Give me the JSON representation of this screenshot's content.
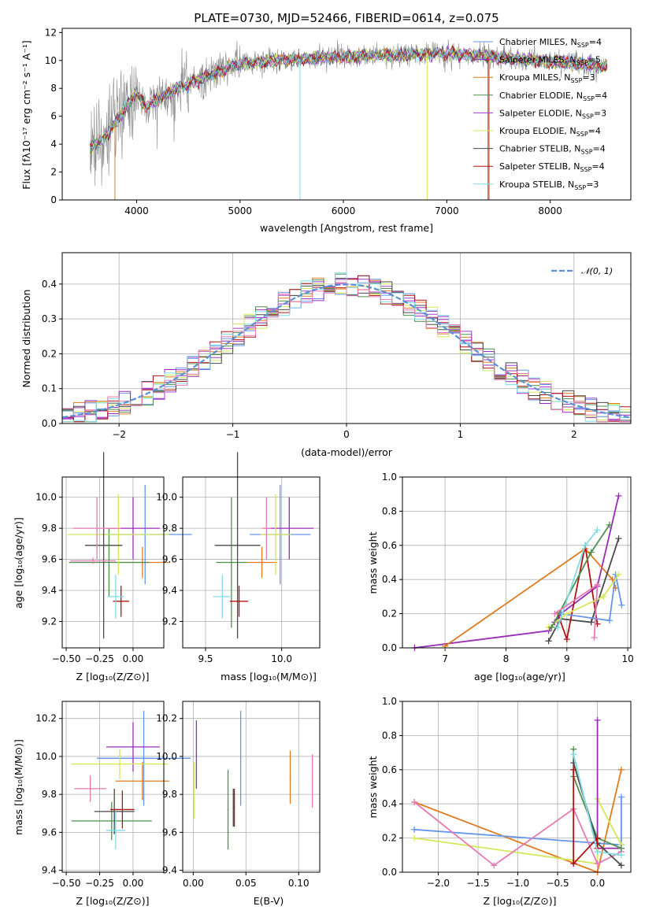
{
  "colors": {
    "chabrier_miles": "#6495ed",
    "salpeter_miles": "#9a2bb8",
    "kroupa_miles": "#e07b20",
    "chabrier_elodie": "#4e8f4e",
    "salpeter_elodie": "#a43ad1",
    "kroupa_elodie": "#d4e85a",
    "chabrier_stelib": "#4a4a4a",
    "salpeter_stelib": "#b01414",
    "kroupa_stelib": "#7fdce8",
    "pink": "#e57ab3",
    "gauss": "#5b8fd6"
  },
  "chart_data": [
    {
      "id": "spectrum",
      "type": "line",
      "title": "PLATE=0730, MJD=52466, FIBERID=0614, z=0.075",
      "xlabel": "wavelength [Angstrom, rest frame]",
      "ylabel": "Flux [fλ10⁻¹⁷ erg cm⁻² s⁻¹ A⁻¹]",
      "xlim": [
        3280,
        8780
      ],
      "ylim": [
        0,
        12.3
      ],
      "xticks": [
        "4000",
        "5000",
        "6000",
        "7000",
        "8000"
      ],
      "yticks": [
        "0",
        "2",
        "4",
        "6",
        "8",
        "10",
        "12"
      ],
      "x_range": [
        3550,
        8550
      ],
      "legend": [
        {
          "label": "Chabrier MILES, N",
          "sub": "SSP",
          "tail": "=4",
          "color": "chabrier_miles"
        },
        {
          "label": "Salpeter MILES, N",
          "sub": "SSP",
          "tail": "=5",
          "color": "salpeter_miles"
        },
        {
          "label": "Kroupa MILES, N",
          "sub": "SSP",
          "tail": "=3",
          "color": "kroupa_miles"
        },
        {
          "label": "Chabrier ELODIE, N",
          "sub": "SSP",
          "tail": "=4",
          "color": "chabrier_elodie"
        },
        {
          "label": "Salpeter ELODIE, N",
          "sub": "SSP",
          "tail": "=3",
          "color": "salpeter_elodie"
        },
        {
          "label": "Kroupa ELODIE, N",
          "sub": "SSP",
          "tail": "=4",
          "color": "kroupa_elodie"
        },
        {
          "label": "Chabrier STELIB, N",
          "sub": "SSP",
          "tail": "=4",
          "color": "chabrier_stelib"
        },
        {
          "label": "Salpeter STELIB, N",
          "sub": "SSP",
          "tail": "=4",
          "color": "salpeter_stelib"
        },
        {
          "label": "Kroupa STELIB, N",
          "sub": "SSP",
          "tail": "=3",
          "color": "kroupa_stelib"
        }
      ]
    },
    {
      "id": "residuals",
      "type": "bar",
      "xlabel": "(data-model)/error",
      "ylabel": "Normed distribution",
      "xlim": [
        -2.5,
        2.5
      ],
      "ylim": [
        0,
        0.49
      ],
      "xticks": [
        "−2",
        "−1",
        "0",
        "1",
        "2"
      ],
      "yticks": [
        "0.0",
        "0.1",
        "0.2",
        "0.3",
        "0.4"
      ],
      "legend": "𝒩(0, 1)",
      "bin_width": 0.1
    },
    {
      "id": "age_vs_Z",
      "type": "scatter",
      "xlabel": "Z [log₁₀(Z/Z⊙)]",
      "ylabel": "age  [log₁₀(age/yr)]",
      "xlim": [
        -0.53,
        0.23
      ],
      "ylim": [
        9.03,
        10.13
      ],
      "xticks": [
        "−0.50",
        "−0.25",
        "0.00"
      ],
      "yticks": [
        "9.2",
        "9.4",
        "9.6",
        "9.8",
        "10.0"
      ],
      "points": [
        {
          "x": 0.09,
          "y": 9.76,
          "xe": 0.35,
          "ye": 0.32,
          "c": "chabrier_miles"
        },
        {
          "x": 0.0,
          "y": 9.8,
          "xe": 0.2,
          "ye": 0.2,
          "c": "salpeter_miles"
        },
        {
          "x": 0.07,
          "y": 9.58,
          "xe": 0.2,
          "ye": 0.1,
          "c": "kroupa_miles"
        },
        {
          "x": -0.18,
          "y": 9.58,
          "xe": 0.3,
          "ye": 0.22,
          "c": "chabrier_elodie"
        },
        {
          "x": -0.11,
          "y": 9.76,
          "xe": 0.38,
          "ye": 0.26,
          "c": "kroupa_elodie"
        },
        {
          "x": -0.22,
          "y": 9.69,
          "xe": 0.14,
          "ye": 0.6,
          "c": "chabrier_stelib"
        },
        {
          "x": -0.09,
          "y": 9.33,
          "xe": 0.06,
          "ye": 0.1,
          "c": "salpeter_stelib"
        },
        {
          "x": -0.13,
          "y": 9.36,
          "xe": 0.06,
          "ye": 0.14,
          "c": "kroupa_stelib"
        },
        {
          "x": -0.27,
          "y": 9.8,
          "xe": 0.18,
          "ye": 0.2,
          "c": "pink"
        },
        {
          "x": -0.3,
          "y": 9.59,
          "xe": 0.17,
          "ye": 0.02,
          "c": "pink"
        }
      ]
    },
    {
      "id": "age_vs_mass",
      "type": "scatter",
      "xlabel": "mass [log₁₀(M/M⊙)]",
      "ylabel": "",
      "xlim": [
        9.35,
        10.25
      ],
      "ylim": [
        9.03,
        10.13
      ],
      "xticks": [
        "9.5",
        "10.0"
      ],
      "yticks": [
        "9.2",
        "9.4",
        "9.6",
        "9.8",
        "10.0"
      ],
      "points": [
        {
          "x": 9.99,
          "y": 9.76,
          "xe": 0.2,
          "ye": 0.32,
          "c": "chabrier_miles"
        },
        {
          "x": 10.05,
          "y": 9.8,
          "xe": 0.16,
          "ye": 0.2,
          "c": "salpeter_miles"
        },
        {
          "x": 9.87,
          "y": 9.58,
          "xe": 0.1,
          "ye": 0.1,
          "c": "kroupa_miles"
        },
        {
          "x": 9.67,
          "y": 9.58,
          "xe": 0.1,
          "ye": 0.42,
          "c": "chabrier_elodie"
        },
        {
          "x": 9.96,
          "y": 9.76,
          "xe": 0.1,
          "ye": 0.26,
          "c": "kroupa_elodie"
        },
        {
          "x": 9.71,
          "y": 9.69,
          "xe": 0.15,
          "ye": 0.6,
          "c": "chabrier_stelib"
        },
        {
          "x": 9.72,
          "y": 9.33,
          "xe": 0.06,
          "ye": 0.1,
          "c": "salpeter_stelib"
        },
        {
          "x": 9.61,
          "y": 9.36,
          "xe": 0.06,
          "ye": 0.14,
          "c": "kroupa_stelib"
        },
        {
          "x": 9.9,
          "y": 9.8,
          "xe": 0.03,
          "ye": 0.2,
          "c": "pink"
        }
      ]
    },
    {
      "id": "weight_vs_age",
      "type": "line",
      "xlabel": "age  [log₁₀(age/yr)]",
      "ylabel": "mass weight",
      "xlim": [
        6.3,
        10.05
      ],
      "ylim": [
        0,
        1.0
      ],
      "xticks": [
        "7",
        "8",
        "9",
        "10"
      ],
      "yticks": [
        "0.0",
        "0.2",
        "0.4",
        "0.6",
        "0.8",
        "1.0"
      ],
      "series": [
        {
          "c": "salpeter_miles",
          "x": [
            6.5,
            8.7,
            8.8,
            8.9,
            9.5,
            9.85
          ],
          "y": [
            0.0,
            0.1,
            0.15,
            0.2,
            0.36,
            0.89
          ]
        },
        {
          "c": "kroupa_miles",
          "x": [
            7.0,
            9.3,
            9.75,
            9.8
          ],
          "y": [
            0.01,
            0.58,
            0.4,
            0.35
          ]
        },
        {
          "c": "chabrier_stelib",
          "x": [
            8.7,
            8.9,
            9.4,
            9.85
          ],
          "y": [
            0.04,
            0.17,
            0.15,
            0.64
          ]
        },
        {
          "c": "salpeter_stelib",
          "x": [
            8.85,
            9.0,
            9.3,
            9.5
          ],
          "y": [
            0.2,
            0.05,
            0.6,
            0.14
          ]
        },
        {
          "c": "chabrier_miles",
          "x": [
            8.9,
            9.7,
            9.8,
            9.9
          ],
          "y": [
            0.2,
            0.16,
            0.43,
            0.25
          ]
        },
        {
          "c": "kroupa_elodie",
          "x": [
            8.7,
            9.0,
            9.6,
            9.85
          ],
          "y": [
            0.12,
            0.2,
            0.3,
            0.43
          ]
        },
        {
          "c": "chabrier_elodie",
          "x": [
            8.75,
            9.4,
            9.7
          ],
          "y": [
            0.12,
            0.56,
            0.72
          ]
        },
        {
          "c": "kroupa_stelib",
          "x": [
            8.85,
            9.3,
            9.5
          ],
          "y": [
            0.12,
            0.6,
            0.69
          ]
        },
        {
          "c": "pink",
          "x": [
            8.8,
            9.5,
            9.45
          ],
          "y": [
            0.2,
            0.37,
            0.06
          ]
        }
      ]
    },
    {
      "id": "mass_vs_Z",
      "type": "scatter",
      "xlabel": "Z [log₁₀(Z/Z⊙)]",
      "ylabel": "mass [log₁₀(M/M⊙)]",
      "xlim": [
        -0.53,
        0.23
      ],
      "ylim": [
        9.39,
        10.29
      ],
      "xticks": [
        "−0.50",
        "−0.25",
        "0.00"
      ],
      "yticks": [
        "9.4",
        "9.6",
        "9.8",
        "10.0",
        "10.2"
      ],
      "points": [
        {
          "x": 0.08,
          "y": 9.99,
          "xe": 0.35,
          "ye": 0.25,
          "c": "chabrier_miles"
        },
        {
          "x": 0.0,
          "y": 10.05,
          "xe": 0.2,
          "ye": 0.13,
          "c": "salpeter_miles"
        },
        {
          "x": 0.07,
          "y": 9.87,
          "xe": 0.2,
          "ye": 0.1,
          "c": "kroupa_miles"
        },
        {
          "x": -0.16,
          "y": 9.66,
          "xe": 0.3,
          "ye": 0.1,
          "c": "chabrier_elodie"
        },
        {
          "x": -0.1,
          "y": 9.96,
          "xe": 0.36,
          "ye": 0.08,
          "c": "kroupa_elodie"
        },
        {
          "x": -0.14,
          "y": 9.71,
          "xe": 0.15,
          "ye": 0.12,
          "c": "chabrier_stelib"
        },
        {
          "x": -0.08,
          "y": 9.72,
          "xe": 0.09,
          "ye": 0.1,
          "c": "salpeter_stelib"
        },
        {
          "x": -0.13,
          "y": 9.61,
          "xe": 0.07,
          "ye": 0.1,
          "c": "kroupa_stelib"
        },
        {
          "x": -0.32,
          "y": 9.83,
          "xe": 0.12,
          "ye": 0.07,
          "c": "pink"
        }
      ]
    },
    {
      "id": "mass_vs_ebv",
      "type": "scatter",
      "xlabel": "E(B-V)",
      "ylabel": "",
      "xlim": [
        -0.01,
        0.12
      ],
      "ylim": [
        9.39,
        10.29
      ],
      "xticks": [
        "0.00",
        "0.05",
        "0.10"
      ],
      "yticks": [
        "9.4",
        "9.6",
        "9.8",
        "10.0",
        "10.2"
      ],
      "points": [
        {
          "x": 0.045,
          "y": 9.99,
          "xe": 0,
          "ye": 0.25,
          "c": "chabrier_miles"
        },
        {
          "x": 0.003,
          "y": 10.01,
          "xe": 0,
          "ye": 0.18,
          "c": "salpeter_miles"
        },
        {
          "x": 0.092,
          "y": 9.89,
          "xe": 0,
          "ye": 0.14,
          "c": "kroupa_miles"
        },
        {
          "x": 0.033,
          "y": 9.72,
          "xe": 0,
          "ye": 0.21,
          "c": "chabrier_elodie"
        },
        {
          "x": 0.001,
          "y": 9.82,
          "xe": 0,
          "ye": 0.15,
          "c": "kroupa_elodie"
        },
        {
          "x": 0.038,
          "y": 9.73,
          "xe": 0,
          "ye": 0.1,
          "c": "chabrier_stelib"
        },
        {
          "x": 0.039,
          "y": 9.73,
          "xe": 0,
          "ye": 0.1,
          "c": "salpeter_stelib"
        },
        {
          "x": 0.113,
          "y": 9.87,
          "xe": 0,
          "ye": 0.14,
          "c": "pink"
        }
      ]
    },
    {
      "id": "weight_vs_Z",
      "type": "line",
      "xlabel": "Z [log₁₀(Z/Z⊙)]",
      "ylabel": "mass weight",
      "xlim": [
        -2.45,
        0.42
      ],
      "ylim": [
        0,
        1.0
      ],
      "xticks": [
        "−2.0",
        "−1.5",
        "−1.0",
        "−0.5",
        "0.0"
      ],
      "yticks": [
        "0.0",
        "0.2",
        "0.4",
        "0.6",
        "0.8",
        "1.0"
      ],
      "series": [
        {
          "c": "kroupa_miles",
          "x": [
            -2.3,
            0.0,
            0.3
          ],
          "y": [
            0.41,
            0.0,
            0.6
          ]
        },
        {
          "c": "chabrier_miles",
          "x": [
            -2.3,
            0.0,
            0.3,
            0.3
          ],
          "y": [
            0.25,
            0.17,
            0.16,
            0.44
          ]
        },
        {
          "c": "kroupa_elodie",
          "x": [
            -2.3,
            0.0,
            0.0,
            0.3
          ],
          "y": [
            0.2,
            0.05,
            0.43,
            0.16
          ]
        },
        {
          "c": "pink",
          "x": [
            -2.3,
            -1.3,
            -0.3,
            0.0,
            0.3
          ],
          "y": [
            0.41,
            0.04,
            0.37,
            0.05,
            0.12
          ]
        },
        {
          "c": "salpeter_miles",
          "x": [
            0.0,
            0.0,
            0.0,
            0.3
          ],
          "y": [
            0.89,
            0.2,
            0.14,
            0.14
          ]
        },
        {
          "c": "chabrier_elodie",
          "x": [
            -0.3,
            -0.3,
            0.0,
            0.3
          ],
          "y": [
            0.72,
            0.56,
            0.2,
            0.14
          ]
        },
        {
          "c": "chabrier_stelib",
          "x": [
            -0.3,
            0.0,
            0.3
          ],
          "y": [
            0.64,
            0.17,
            0.04
          ]
        },
        {
          "c": "salpeter_stelib",
          "x": [
            -0.3,
            -0.3,
            0.0,
            0.0
          ],
          "y": [
            0.6,
            0.05,
            0.2,
            0.14
          ]
        },
        {
          "c": "kroupa_stelib",
          "x": [
            -0.3,
            0.0,
            0.3
          ],
          "y": [
            0.69,
            0.12,
            0.1
          ]
        }
      ]
    }
  ]
}
